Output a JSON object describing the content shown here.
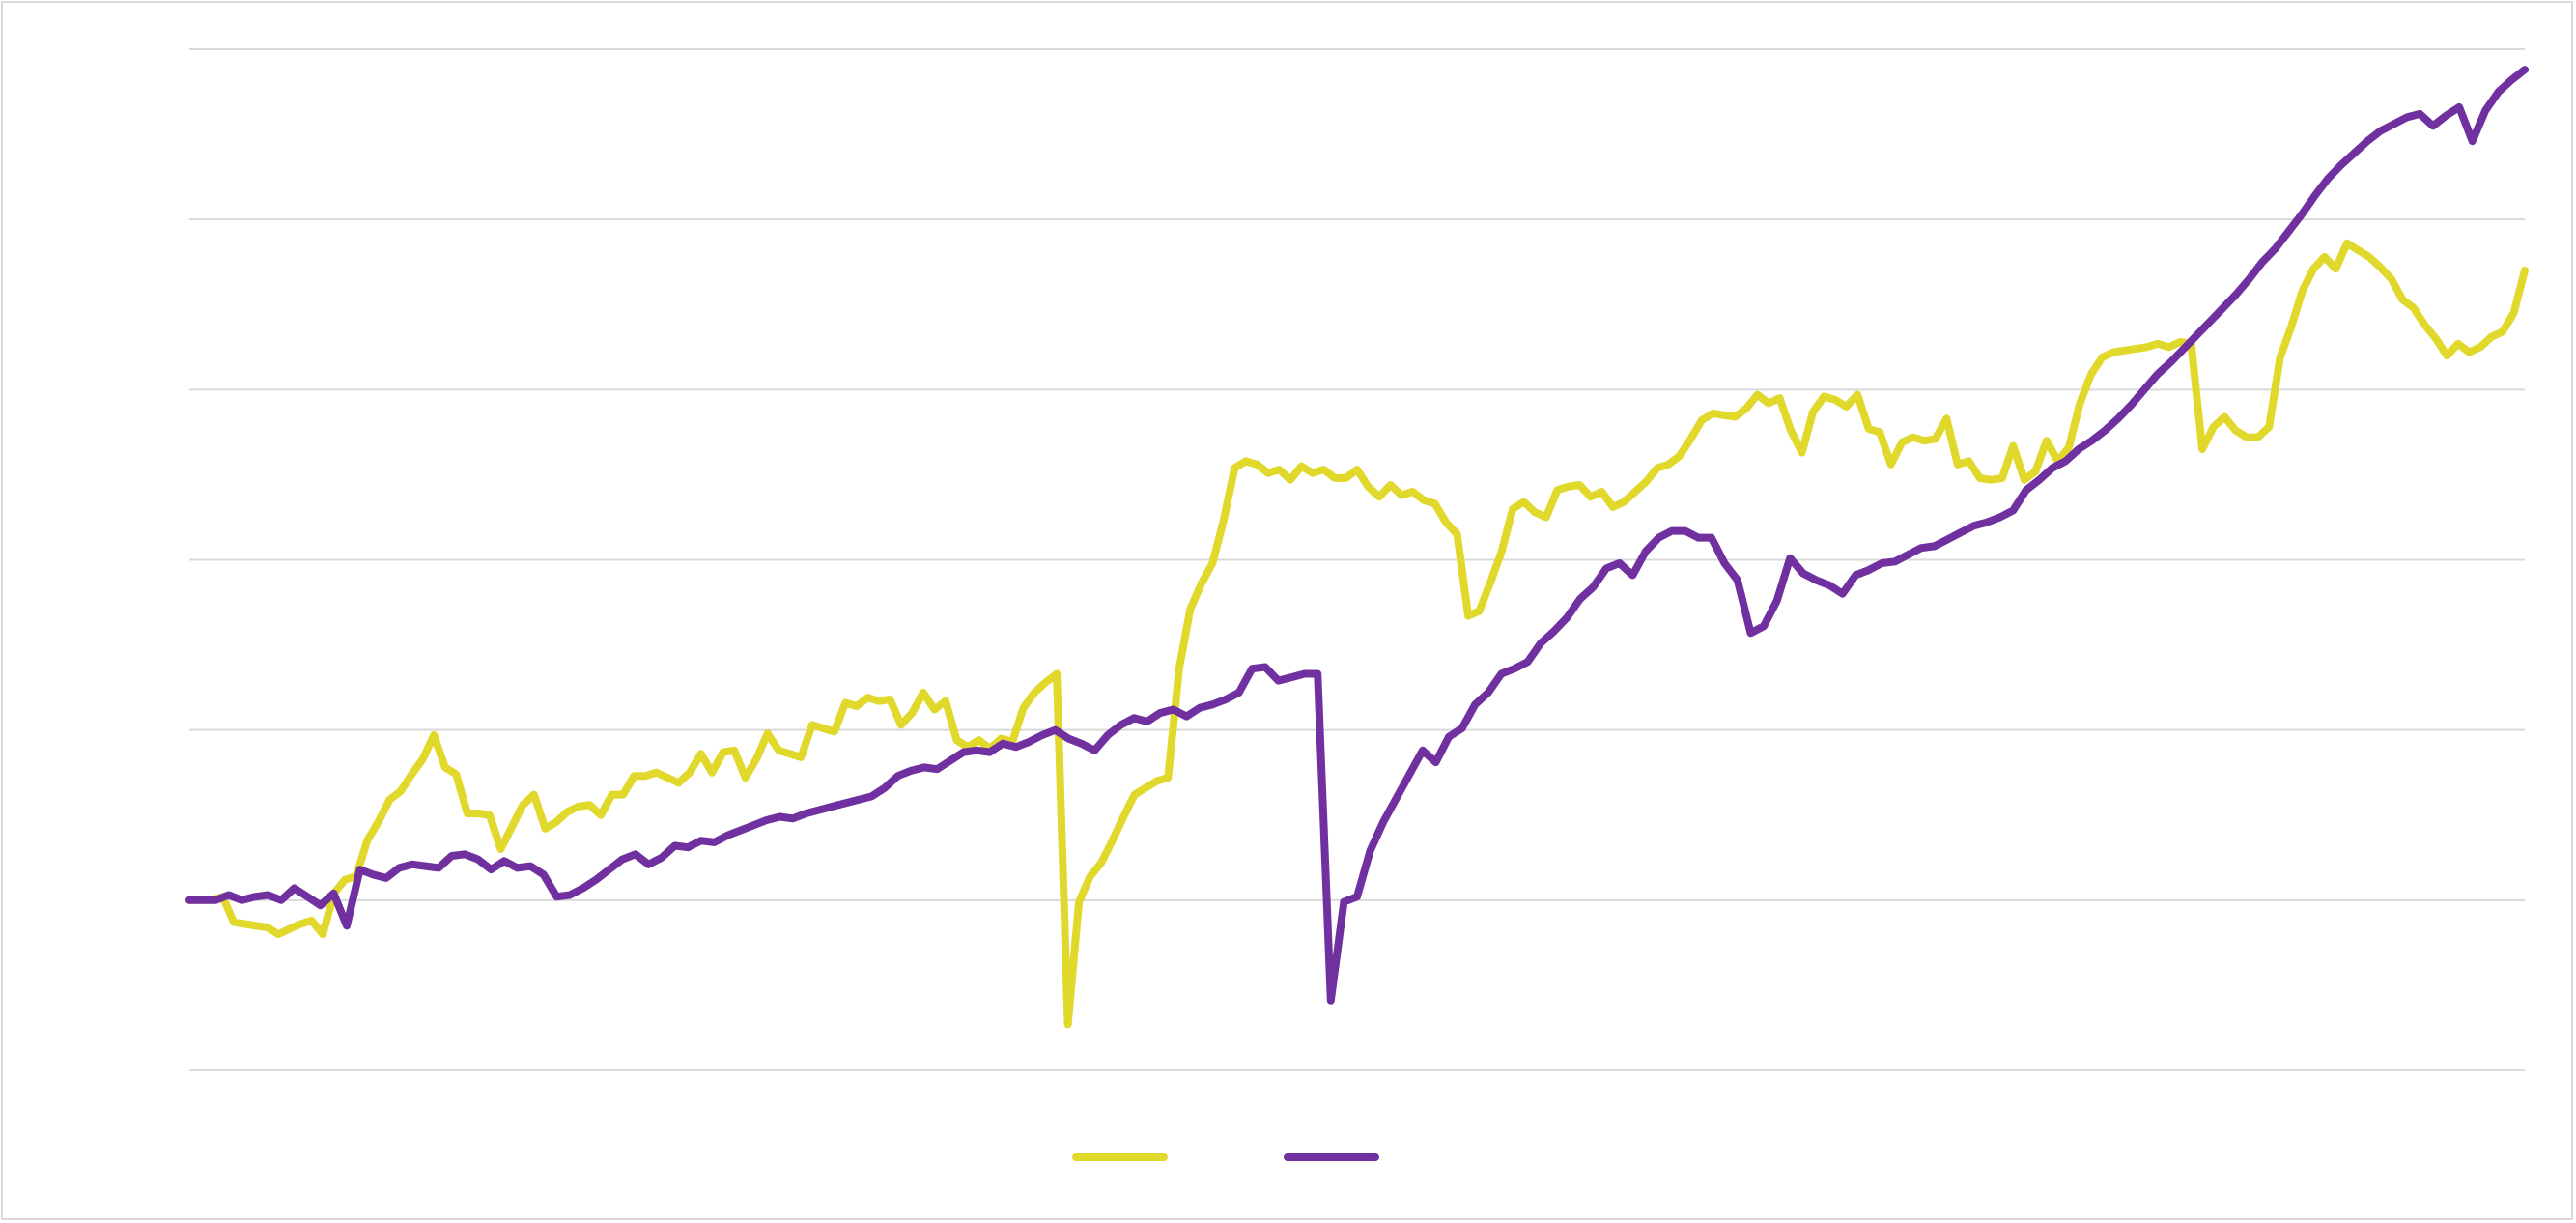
{
  "chart_data": {
    "type": "line",
    "title": "",
    "xlabel": "",
    "ylabel": "",
    "ylim": [
      0,
      6
    ],
    "yticks": [
      0,
      1,
      2,
      3,
      4,
      5,
      6
    ],
    "grid": true,
    "legend_position": "bottom-center",
    "colors": {
      "series1": "#E1D82C",
      "series2": "#7030A0",
      "grid": "#d9d9d9",
      "border": "#d9d9d9"
    },
    "series": [
      {
        "values": [
          1.0,
          1.0,
          1.0,
          1.02,
          0.87,
          0.86,
          0.85,
          0.84,
          0.8,
          0.83,
          0.86,
          0.88,
          0.8,
          1.04,
          1.12,
          1.14,
          1.35,
          1.46,
          1.59,
          1.64,
          1.74,
          1.83,
          1.97,
          1.78,
          1.74,
          1.51,
          1.51,
          1.5,
          1.3,
          1.43,
          1.56,
          1.62,
          1.42,
          1.46,
          1.52,
          1.55,
          1.56,
          1.5,
          1.62,
          1.62,
          1.73,
          1.73,
          1.75,
          1.72,
          1.69,
          1.75,
          1.86,
          1.75,
          1.87,
          1.88,
          1.72,
          1.83,
          1.98,
          1.88,
          1.86,
          1.84,
          2.03,
          2.01,
          1.99,
          2.16,
          2.14,
          2.19,
          2.17,
          2.18,
          2.03,
          2.1,
          2.22,
          2.12,
          2.17,
          1.94,
          1.9,
          1.94,
          1.89,
          1.95,
          1.93,
          2.13,
          2.22,
          2.28,
          2.33,
          0.27,
          0.99,
          1.14,
          1.22,
          1.35,
          1.49,
          1.62,
          1.66,
          1.7,
          1.72,
          2.36,
          2.71,
          2.86,
          2.98,
          3.23,
          3.54,
          3.58,
          3.56,
          3.51,
          3.53,
          3.47,
          3.55,
          3.51,
          3.53,
          3.48,
          3.48,
          3.53,
          3.43,
          3.37,
          3.44,
          3.38,
          3.4,
          3.35,
          3.33,
          3.22,
          3.15,
          2.67,
          2.7,
          2.87,
          3.05,
          3.3,
          3.34,
          3.28,
          3.25,
          3.41,
          3.43,
          3.44,
          3.37,
          3.4,
          3.31,
          3.34,
          3.4,
          3.46,
          3.54,
          3.56,
          3.61,
          3.71,
          3.82,
          3.86,
          3.85,
          3.84,
          3.89,
          3.97,
          3.92,
          3.95,
          3.76,
          3.63,
          3.87,
          3.96,
          3.94,
          3.9,
          3.97,
          3.77,
          3.75,
          3.56,
          3.69,
          3.72,
          3.7,
          3.71,
          3.83,
          3.56,
          3.58,
          3.48,
          3.47,
          3.48,
          3.67,
          3.47,
          3.52,
          3.7,
          3.58,
          3.66,
          3.92,
          4.09,
          4.19,
          4.22,
          4.23,
          4.24,
          4.25,
          4.27,
          4.25,
          4.28,
          4.27,
          3.65,
          3.78,
          3.84,
          3.76,
          3.72,
          3.72,
          3.78,
          4.19,
          4.37,
          4.58,
          4.71,
          4.78,
          4.71,
          4.86,
          4.82,
          4.78,
          4.72,
          4.65,
          4.53,
          4.48,
          4.38,
          4.3,
          4.2,
          4.27,
          4.22,
          4.25,
          4.31,
          4.34,
          4.45,
          4.7
        ]
      },
      {
        "values": [
          1.0,
          1.0,
          1.0,
          1.03,
          1.0,
          1.02,
          1.03,
          1.0,
          1.07,
          1.02,
          0.97,
          1.04,
          0.85,
          1.18,
          1.15,
          1.13,
          1.19,
          1.21,
          1.2,
          1.19,
          1.26,
          1.27,
          1.24,
          1.18,
          1.23,
          1.19,
          1.2,
          1.15,
          1.02,
          1.03,
          1.07,
          1.12,
          1.18,
          1.24,
          1.27,
          1.21,
          1.25,
          1.32,
          1.31,
          1.35,
          1.34,
          1.38,
          1.41,
          1.44,
          1.47,
          1.49,
          1.48,
          1.51,
          1.53,
          1.55,
          1.57,
          1.59,
          1.61,
          1.66,
          1.73,
          1.76,
          1.78,
          1.77,
          1.82,
          1.87,
          1.88,
          1.87,
          1.92,
          1.9,
          1.93,
          1.97,
          2.0,
          1.95,
          1.92,
          1.88,
          1.97,
          2.03,
          2.07,
          2.05,
          2.1,
          2.12,
          2.08,
          2.13,
          2.15,
          2.18,
          2.22,
          2.36,
          2.37,
          2.29,
          2.31,
          2.33,
          2.33,
          0.41,
          0.99,
          1.02,
          1.29,
          1.46,
          1.6,
          1.74,
          1.88,
          1.81,
          1.96,
          2.01,
          2.15,
          2.22,
          2.33,
          2.36,
          2.4,
          2.51,
          2.58,
          2.66,
          2.77,
          2.84,
          2.95,
          2.98,
          2.91,
          3.05,
          3.13,
          3.17,
          3.17,
          3.13,
          3.13,
          2.98,
          2.88,
          2.57,
          2.61,
          2.76,
          3.01,
          2.92,
          2.88,
          2.85,
          2.8,
          2.91,
          2.94,
          2.98,
          2.99,
          3.03,
          3.07,
          3.08,
          3.12,
          3.16,
          3.2,
          3.22,
          3.25,
          3.29,
          3.41,
          3.47,
          3.54,
          3.58,
          3.65,
          3.7,
          3.76,
          3.83,
          3.91,
          4.0,
          4.09,
          4.16,
          4.24,
          4.32,
          4.4,
          4.48,
          4.56,
          4.65,
          4.75,
          4.83,
          4.93,
          5.03,
          5.14,
          5.24,
          5.32,
          5.39,
          5.46,
          5.52,
          5.56,
          5.6,
          5.62,
          5.55,
          5.61,
          5.66,
          5.46,
          5.64,
          5.75,
          5.82,
          5.88
        ]
      }
    ]
  }
}
